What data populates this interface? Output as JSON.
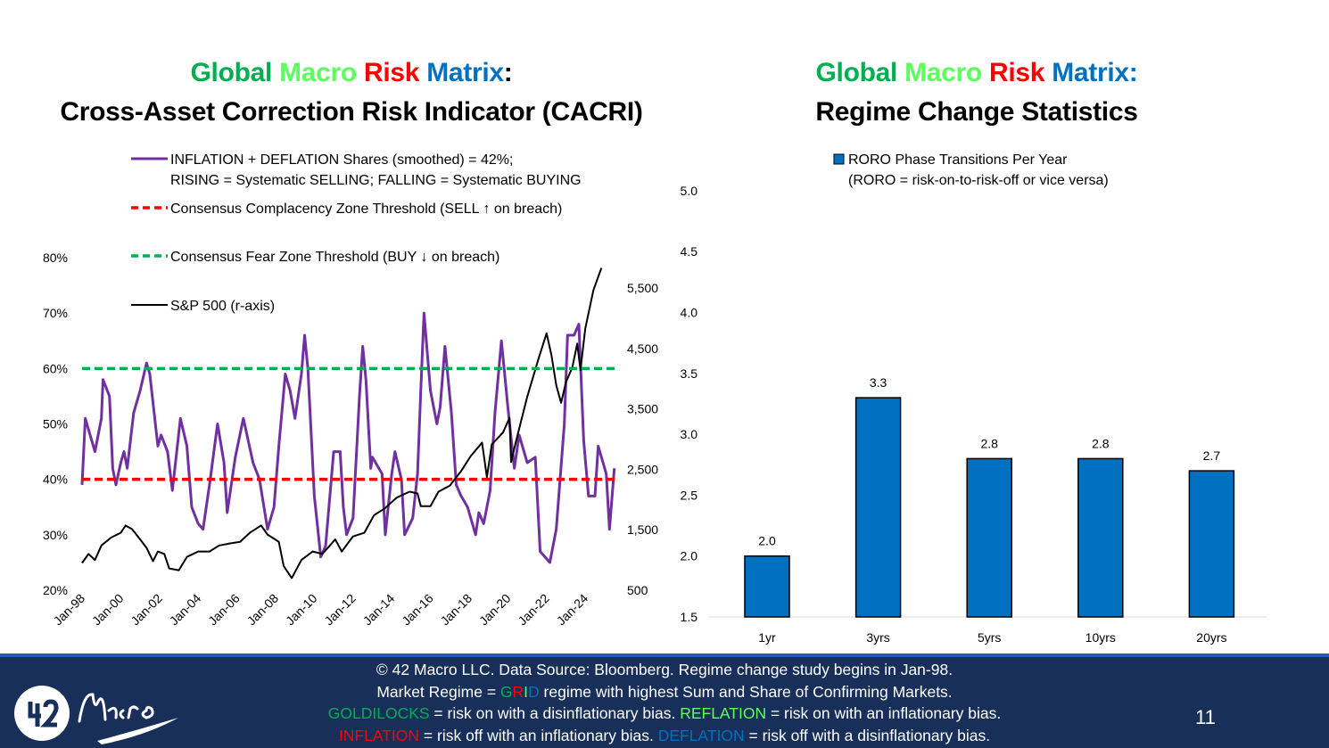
{
  "left_title": {
    "w1": "Global",
    "w2": "Macro",
    "w3": "Risk",
    "w4": "Matrix",
    "colon": ":",
    "line2": "Cross-Asset Correction Risk Indicator (CACRI)"
  },
  "right_title": {
    "w1": "Global",
    "w2": "Macro",
    "w3": "Risk",
    "w4": "Matrix",
    "colon": ":",
    "line2": "Regime Change Statistics"
  },
  "colors": {
    "global": "#00B050",
    "macro": "#5DFF5D",
    "risk": "#FF0000",
    "matrix": "#0070C0",
    "footer_bg": "#182F5A",
    "footer_rule": "#1E5CC0"
  },
  "chart_data": [
    {
      "type": "line",
      "legend": {
        "placement": "top-left",
        "entries": [
          {
            "line1": "INFLATION + DEFLATION Shares (smoothed) = 42%;",
            "line2": "RISING = Systematic SELLING; FALLING = Systematic BUYING",
            "color": "#7030A0",
            "style": "solid"
          },
          {
            "line1": "Consensus Complacency Zone Threshold (SELL ↑ on breach)",
            "color": "#FF0000",
            "style": "dashed"
          },
          {
            "line1": "Consensus Fear Zone Threshold (BUY ↓ on breach)",
            "color": "#00B050",
            "style": "dashed"
          },
          {
            "line1": "S&P 500 (r-axis)",
            "color": "#000000",
            "style": "solid"
          }
        ]
      },
      "x_ticks": [
        "Jan-98",
        "Jan-00",
        "Jan-02",
        "Jan-04",
        "Jan-06",
        "Jan-08",
        "Jan-10",
        "Jan-12",
        "Jan-14",
        "Jan-16",
        "Jan-18",
        "Jan-20",
        "Jan-22",
        "Jan-24"
      ],
      "y_left": {
        "ticks": [
          "20%",
          "30%",
          "40%",
          "50%",
          "60%",
          "70%",
          "80%"
        ],
        "range": [
          20,
          80
        ]
      },
      "y_right": {
        "ticks": [
          "500",
          "1,500",
          "2,500",
          "3,500",
          "4,500",
          "5,500"
        ],
        "range": [
          500,
          5900
        ]
      },
      "thresholds": {
        "complacency": 40,
        "fear": 60
      },
      "series": [
        {
          "name": "INFLATION + DEFLATION Shares (smoothed)",
          "axis": "left",
          "color": "#7030A0",
          "points": [
            [
              "1998-01",
              39
            ],
            [
              "1998-03",
              51
            ],
            [
              "1998-07",
              47
            ],
            [
              "1998-09",
              45
            ],
            [
              "1999-01",
              51
            ],
            [
              "1999-02",
              58
            ],
            [
              "1999-06",
              55
            ],
            [
              "1999-08",
              42
            ],
            [
              "1999-10",
              39
            ],
            [
              "2000-01",
              43
            ],
            [
              "2000-03",
              45
            ],
            [
              "2000-05",
              42
            ],
            [
              "2000-09",
              52
            ],
            [
              "2001-01",
              56
            ],
            [
              "2001-05",
              61
            ],
            [
              "2001-07",
              59
            ],
            [
              "2001-12",
              46
            ],
            [
              "2002-02",
              48
            ],
            [
              "2002-06",
              45
            ],
            [
              "2002-09",
              38
            ],
            [
              "2003-02",
              51
            ],
            [
              "2003-06",
              46
            ],
            [
              "2003-09",
              35
            ],
            [
              "2004-01",
              32
            ],
            [
              "2004-04",
              31
            ],
            [
              "2004-08",
              39
            ],
            [
              "2005-01",
              50
            ],
            [
              "2005-05",
              43
            ],
            [
              "2005-07",
              34
            ],
            [
              "2005-12",
              44
            ],
            [
              "2006-05",
              51
            ],
            [
              "2006-11",
              43
            ],
            [
              "2007-03",
              40
            ],
            [
              "2007-08",
              31
            ],
            [
              "2007-12",
              35
            ],
            [
              "2008-03",
              46
            ],
            [
              "2008-07",
              59
            ],
            [
              "2008-10",
              56
            ],
            [
              "2009-01",
              51
            ],
            [
              "2009-05",
              59
            ],
            [
              "2009-07",
              66
            ],
            [
              "2009-09",
              60
            ],
            [
              "2010-01",
              37
            ],
            [
              "2010-05",
              26
            ],
            [
              "2010-08",
              28
            ],
            [
              "2011-01",
              45
            ],
            [
              "2011-05",
              45
            ],
            [
              "2011-07",
              35
            ],
            [
              "2011-09",
              30
            ],
            [
              "2012-01",
              33
            ],
            [
              "2012-05",
              55
            ],
            [
              "2012-07",
              64
            ],
            [
              "2012-09",
              58
            ],
            [
              "2012-12",
              42
            ],
            [
              "2013-01",
              44
            ],
            [
              "2013-05",
              42
            ],
            [
              "2013-07",
              41
            ],
            [
              "2013-09",
              30
            ],
            [
              "2014-01",
              41
            ],
            [
              "2014-03",
              45
            ],
            [
              "2014-07",
              40
            ],
            [
              "2014-09",
              30
            ],
            [
              "2015-02",
              33
            ],
            [
              "2015-05",
              41
            ],
            [
              "2015-07",
              56
            ],
            [
              "2015-09",
              70
            ],
            [
              "2016-01",
              56
            ],
            [
              "2016-05",
              50
            ],
            [
              "2016-07",
              53
            ],
            [
              "2016-10",
              64
            ],
            [
              "2017-02",
              52
            ],
            [
              "2017-05",
              39
            ],
            [
              "2017-08",
              37
            ],
            [
              "2017-12",
              35
            ],
            [
              "2018-05",
              30
            ],
            [
              "2018-07",
              34
            ],
            [
              "2018-10",
              32
            ],
            [
              "2019-02",
              38
            ],
            [
              "2019-05",
              52
            ],
            [
              "2019-09",
              65
            ],
            [
              "2020-01",
              53
            ],
            [
              "2020-05",
              42
            ],
            [
              "2020-08",
              48
            ],
            [
              "2021-01",
              43
            ],
            [
              "2021-06",
              44
            ],
            [
              "2021-09",
              27
            ],
            [
              "2022-03",
              25
            ],
            [
              "2022-07",
              31
            ],
            [
              "2022-12",
              50
            ],
            [
              "2023-02",
              66
            ],
            [
              "2023-06",
              66
            ],
            [
              "2023-09",
              68
            ],
            [
              "2023-12",
              47
            ],
            [
              "2024-03",
              37
            ],
            [
              "2024-07",
              37
            ],
            [
              "2024-09",
              46
            ],
            [
              "2024-12",
              43
            ],
            [
              "2025-02",
              41
            ],
            [
              "2025-04",
              31
            ],
            [
              "2025-07",
              42
            ]
          ]
        },
        {
          "name": "S&P 500",
          "axis": "right",
          "color": "#000000",
          "points": [
            [
              "1998-01",
              950
            ],
            [
              "1998-05",
              1100
            ],
            [
              "1998-09",
              1000
            ],
            [
              "1999-01",
              1240
            ],
            [
              "1999-07",
              1370
            ],
            [
              "2000-01",
              1450
            ],
            [
              "2000-04",
              1570
            ],
            [
              "2000-08",
              1510
            ],
            [
              "2001-01",
              1340
            ],
            [
              "2001-05",
              1200
            ],
            [
              "2001-09",
              980
            ],
            [
              "2001-12",
              1140
            ],
            [
              "2002-04",
              1100
            ],
            [
              "2002-07",
              860
            ],
            [
              "2003-01",
              830
            ],
            [
              "2003-06",
              1050
            ],
            [
              "2004-01",
              1140
            ],
            [
              "2004-08",
              1140
            ],
            [
              "2005-02",
              1240
            ],
            [
              "2005-08",
              1270
            ],
            [
              "2006-03",
              1300
            ],
            [
              "2006-09",
              1450
            ],
            [
              "2007-04",
              1570
            ],
            [
              "2007-08",
              1420
            ],
            [
              "2008-03",
              1300
            ],
            [
              "2008-06",
              900
            ],
            [
              "2008-11",
              700
            ],
            [
              "2009-05",
              1000
            ],
            [
              "2009-12",
              1140
            ],
            [
              "2010-06",
              1100
            ],
            [
              "2011-02",
              1340
            ],
            [
              "2011-06",
              1140
            ],
            [
              "2012-01",
              1390
            ],
            [
              "2012-08",
              1450
            ],
            [
              "2013-02",
              1740
            ],
            [
              "2013-09",
              1860
            ],
            [
              "2014-04",
              2030
            ],
            [
              "2014-12",
              2130
            ],
            [
              "2015-05",
              2100
            ],
            [
              "2015-07",
              1890
            ],
            [
              "2016-01",
              1890
            ],
            [
              "2016-06",
              2130
            ],
            [
              "2017-01",
              2230
            ],
            [
              "2017-08",
              2470
            ],
            [
              "2018-02",
              2720
            ],
            [
              "2018-09",
              2940
            ],
            [
              "2018-12",
              2370
            ],
            [
              "2019-03",
              2910
            ],
            [
              "2019-10",
              3110
            ],
            [
              "2020-02",
              3350
            ],
            [
              "2020-03",
              2620
            ],
            [
              "2020-06",
              2960
            ],
            [
              "2021-01",
              3700
            ],
            [
              "2021-08",
              4330
            ],
            [
              "2022-01",
              4750
            ],
            [
              "2022-04",
              4390
            ],
            [
              "2022-07",
              3890
            ],
            [
              "2022-10",
              3600
            ],
            [
              "2023-01",
              3940
            ],
            [
              "2023-05",
              4190
            ],
            [
              "2023-08",
              4580
            ],
            [
              "2023-10",
              4140
            ],
            [
              "2024-01",
              4830
            ],
            [
              "2024-06",
              5460
            ],
            [
              "2024-08",
              5610
            ],
            [
              "2024-11",
              5830
            ]
          ]
        }
      ]
    },
    {
      "type": "bar",
      "legend": {
        "placement": "top",
        "line1": "RORO Phase Transitions Per Year",
        "line2": "(RORO = risk-on-to-risk-off or vice versa)",
        "color": "#0070C0"
      },
      "categories": [
        "1yr",
        "3yrs",
        "5yrs",
        "10yrs",
        "20yrs"
      ],
      "values": [
        2.0,
        3.3,
        2.8,
        2.8,
        2.7
      ],
      "data_labels": [
        "2.0",
        "3.3",
        "2.8",
        "2.8",
        "2.7"
      ],
      "y_ticks": [
        "1.5",
        "2.0",
        "2.5",
        "3.0",
        "3.5",
        "4.0",
        "4.5",
        "5.0"
      ],
      "ylim": [
        1.5,
        5.0
      ]
    }
  ],
  "footer": {
    "line1": "© 42 Macro LLC. Data Source: Bloomberg. Regime change study begins in Jan-98.",
    "line2a": "Market Regime = ",
    "g": "G",
    "r": "R",
    "i": "I",
    "d": "D",
    "line2b": " regime with highest Sum and Share of Confirming Markets.",
    "goldilocks": "GOLDILOCKS",
    "line3a": " = risk on with a disinflationary bias. ",
    "reflation": "REFLATION",
    "line3b": " = risk on with an inflationary bias.",
    "inflation": "INFLATION",
    "line4a": " = risk off with an inflationary bias. ",
    "deflation": "DEFLATION",
    "line4b": " = risk off with a disinflationary bias.",
    "page_number": "11",
    "logo_text": "42 Macro"
  }
}
